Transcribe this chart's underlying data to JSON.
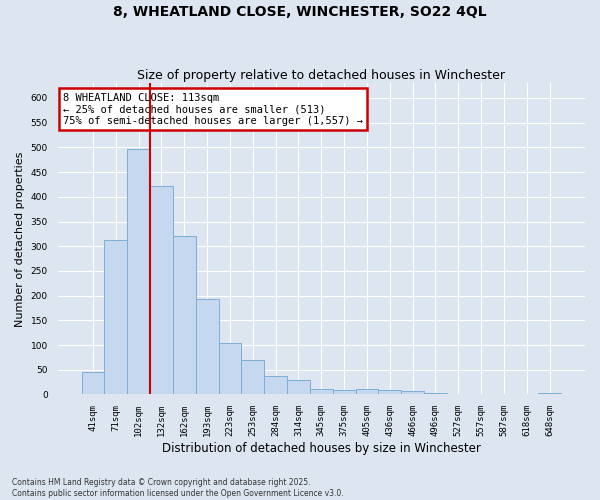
{
  "title": "8, WHEATLAND CLOSE, WINCHESTER, SO22 4QL",
  "subtitle": "Size of property relative to detached houses in Winchester",
  "xlabel": "Distribution of detached houses by size in Winchester",
  "ylabel": "Number of detached properties",
  "categories": [
    "41sqm",
    "71sqm",
    "102sqm",
    "132sqm",
    "162sqm",
    "193sqm",
    "223sqm",
    "253sqm",
    "284sqm",
    "314sqm",
    "345sqm",
    "375sqm",
    "405sqm",
    "436sqm",
    "466sqm",
    "496sqm",
    "527sqm",
    "557sqm",
    "587sqm",
    "618sqm",
    "648sqm"
  ],
  "values": [
    45,
    313,
    497,
    422,
    320,
    193,
    105,
    70,
    37,
    30,
    12,
    10,
    11,
    10,
    7,
    3,
    1,
    0,
    0,
    1,
    2
  ],
  "bar_color": "#c5d8f0",
  "bar_edge_color": "#7bafd4",
  "red_line_x": 2.5,
  "annotation_text": "8 WHEATLAND CLOSE: 113sqm\n← 25% of detached houses are smaller (513)\n75% of semi-detached houses are larger (1,557) →",
  "annotation_box_color": "#ffffff",
  "annotation_box_edge_color": "#cc0000",
  "red_line_color": "#cc0000",
  "background_color": "#dde6f0",
  "plot_bg_color": "#dde6f0",
  "grid_color": "#ffffff",
  "title_fontsize": 10,
  "subtitle_fontsize": 9,
  "tick_fontsize": 6.5,
  "ylabel_fontsize": 8,
  "xlabel_fontsize": 8.5,
  "footer_text": "Contains HM Land Registry data © Crown copyright and database right 2025.\nContains public sector information licensed under the Open Government Licence v3.0.",
  "ylim": [
    0,
    630
  ],
  "yticks": [
    0,
    50,
    100,
    150,
    200,
    250,
    300,
    350,
    400,
    450,
    500,
    550,
    600
  ]
}
